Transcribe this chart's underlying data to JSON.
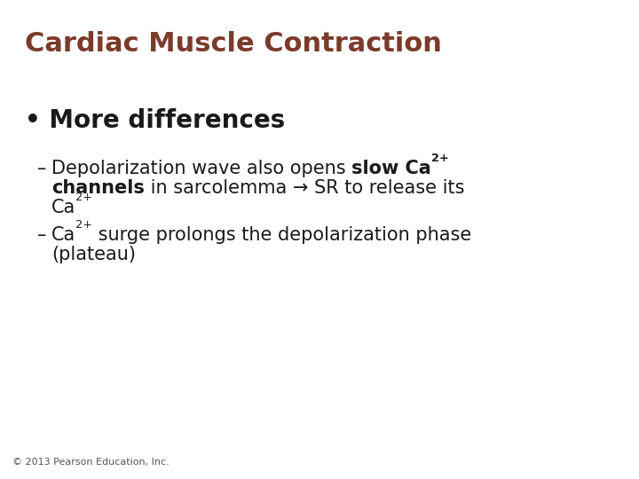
{
  "title": "Cardiac Muscle Contraction",
  "title_color": "#7B3B2A",
  "title_fontsize": 22,
  "background_color": "#FFFFFF",
  "bullet_text": "More differences",
  "bullet_fontsize": 20,
  "bullet_bold": true,
  "bullet_color": "#1a1a1a",
  "sub_fontsize": 15,
  "sub_color": "#1a1a1a",
  "footer": "© 2013 Pearson Education, Inc.",
  "footer_fontsize": 8,
  "footer_color": "#555555",
  "line1a_normal": "Depolarization wave also opens ",
  "line1a_bold": "slow Ca",
  "line1a_super": "2+",
  "line1a_bold2": " channels",
  "line1b_normal": " in sarcolemma → SR to release its",
  "line1c_ca": "Ca",
  "line1c_super": "2+",
  "line2_ca": "Ca",
  "line2_super": "2+",
  "line2_rest": " surge prolongs the depolarization phase",
  "line2b": "(plateau)"
}
